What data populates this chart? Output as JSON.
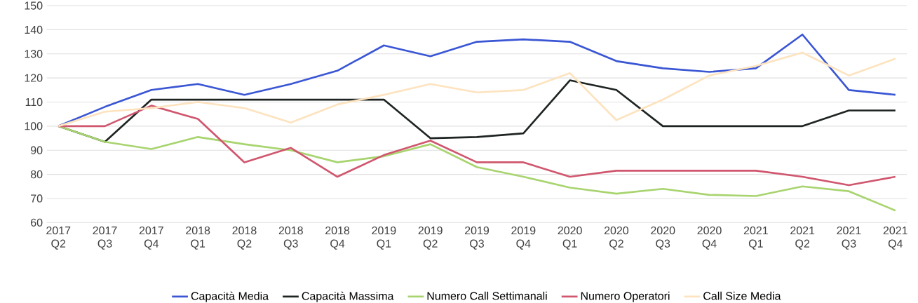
{
  "chart_data": {
    "type": "line",
    "categories": [
      "2017 Q2",
      "2017 Q3",
      "2017 Q4",
      "2018 Q1",
      "2018 Q2",
      "2018 Q3",
      "2018 Q4",
      "2019 Q1",
      "2019 Q2",
      "2019 Q3",
      "2019 Q4",
      "2020 Q1",
      "2020 Q2",
      "2020 Q3",
      "2020 Q4",
      "2021 Q1",
      "2021 Q2",
      "2021 Q3",
      "2021 Q4"
    ],
    "ylim": [
      60,
      150
    ],
    "yticks": [
      60,
      70,
      80,
      90,
      100,
      110,
      120,
      130,
      140,
      150
    ],
    "grid": "y",
    "legend": "bottom",
    "marker": "none",
    "line_style": "solid",
    "series": [
      {
        "name": "Capacità Media",
        "color": "#3a56d4",
        "values": [
          100,
          108,
          115,
          117.5,
          113,
          117.5,
          123,
          133.5,
          129,
          135,
          136,
          135,
          127,
          124,
          122.5,
          124,
          138,
          115,
          113
        ]
      },
      {
        "name": "Capacità Massima",
        "color": "#1e2422",
        "values": [
          100,
          93.5,
          111,
          111,
          111,
          111,
          111,
          111,
          95,
          95.5,
          97,
          119,
          115,
          100,
          100,
          100,
          100,
          106.5,
          106.5
        ]
      },
      {
        "name": "Numero Call Settimanali",
        "color": "#a8d46f",
        "values": [
          100,
          93.5,
          90.5,
          95.5,
          92.5,
          90,
          85,
          87.5,
          92.5,
          83,
          79,
          74.5,
          72,
          74,
          71.5,
          71,
          75,
          73,
          65
        ]
      },
      {
        "name": "Numero Operatori",
        "color": "#d0566e",
        "values": [
          100,
          100,
          108.5,
          103,
          85,
          91,
          79,
          88,
          94,
          85,
          85,
          79,
          81.5,
          81.5,
          81.5,
          81.5,
          79,
          75.5,
          79
        ]
      },
      {
        "name": "Call Size Media",
        "color": "#fde3bf",
        "values": [
          100,
          106,
          107.5,
          110,
          107.5,
          101.5,
          109,
          113,
          117.5,
          114,
          115,
          122,
          102.5,
          111,
          121,
          125,
          130.5,
          121,
          128
        ]
      }
    ]
  }
}
